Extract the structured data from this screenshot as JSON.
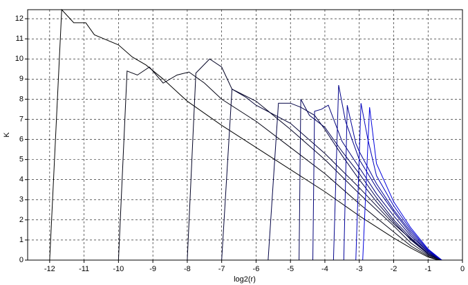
{
  "chart_data": {
    "type": "line",
    "xlabel": "log2(r)",
    "ylabel": "K",
    "xlim": [
      -12.64,
      0
    ],
    "ylim": [
      0,
      12.45
    ],
    "xticks": [
      -12,
      -11,
      -10,
      -9,
      -8,
      -7,
      -6,
      -5,
      -4,
      -3,
      -2,
      -1,
      0
    ],
    "yticks": [
      0,
      1,
      2,
      3,
      4,
      5,
      6,
      7,
      8,
      9,
      10,
      11,
      12
    ],
    "grid": true,
    "series": [
      {
        "color": "#000000",
        "x": [
          -12.0,
          -11.65,
          -11.3,
          -10.95,
          -10.7,
          -10.0,
          -9.6,
          -9.2,
          -8.7,
          -8.0,
          -7.0,
          -6.0,
          -5.0,
          -4.0,
          -3.0,
          -2.0,
          -1.5,
          -1.0,
          -0.7
        ],
        "values": [
          0,
          12.45,
          11.8,
          11.8,
          11.2,
          10.7,
          10.1,
          9.7,
          9.0,
          7.9,
          6.7,
          5.6,
          4.5,
          3.4,
          2.2,
          1.1,
          0.6,
          0.15,
          0
        ]
      },
      {
        "color": "#000010",
        "x": [
          -10.0,
          -9.75,
          -9.45,
          -9.1,
          -8.7,
          -8.3,
          -7.95,
          -7.5,
          -7.0,
          -6.0,
          -5.0,
          -4.0,
          -3.0,
          -2.0,
          -1.5,
          -1.0,
          -0.7
        ],
        "values": [
          0,
          9.4,
          9.2,
          9.6,
          8.8,
          9.2,
          9.35,
          8.8,
          8.0,
          6.9,
          5.6,
          4.3,
          2.8,
          1.4,
          0.7,
          0.2,
          0
        ]
      },
      {
        "color": "#000022",
        "x": [
          -8.0,
          -7.75,
          -7.35,
          -7.0,
          -6.7,
          -6.0,
          -5.0,
          -4.0,
          -3.0,
          -2.0,
          -1.5,
          -1.0,
          -0.65
        ],
        "values": [
          0,
          9.3,
          10.0,
          9.6,
          8.5,
          7.9,
          6.5,
          5.0,
          3.3,
          1.7,
          0.85,
          0.25,
          0
        ]
      },
      {
        "color": "#000033",
        "x": [
          -7.0,
          -6.7,
          -6.3,
          -6.0,
          -5.0,
          -4.0,
          -3.0,
          -2.0,
          -1.0,
          -0.65
        ],
        "values": [
          0,
          8.5,
          8.1,
          7.7,
          6.8,
          5.3,
          3.6,
          1.8,
          0.3,
          0
        ]
      },
      {
        "color": "#000044",
        "x": [
          -5.65,
          -5.35,
          -5.0,
          -4.7,
          -4.3,
          -4.0,
          -3.5,
          -3.0,
          -2.5,
          -2.0,
          -1.5,
          -1.0,
          -0.6
        ],
        "values": [
          0,
          7.8,
          7.8,
          7.6,
          7.2,
          6.5,
          5.2,
          4.0,
          2.9,
          1.9,
          1.0,
          0.3,
          0
        ]
      },
      {
        "color": "#000055",
        "x": [
          -4.75,
          -4.7,
          -4.45,
          -4.0,
          -3.5,
          -3.0,
          -2.5,
          -2.0,
          -1.5,
          -1.0,
          -0.6
        ],
        "values": [
          0,
          8.0,
          7.2,
          6.6,
          5.4,
          4.3,
          3.1,
          2.0,
          1.1,
          0.35,
          0
        ]
      },
      {
        "color": "#000077",
        "x": [
          -4.35,
          -4.3,
          -4.1,
          -3.9,
          -3.5,
          -3.0,
          -2.5,
          -2.0,
          -1.5,
          -1.0,
          -0.6
        ],
        "values": [
          0,
          7.4,
          7.5,
          7.7,
          5.9,
          4.6,
          3.3,
          2.2,
          1.2,
          0.4,
          0
        ]
      },
      {
        "color": "#000088",
        "x": [
          -3.75,
          -3.6,
          -3.4,
          -3.0,
          -2.5,
          -2.0,
          -1.5,
          -1.0,
          -0.6
        ],
        "values": [
          0,
          8.7,
          6.9,
          5.0,
          3.6,
          2.4,
          1.3,
          0.4,
          0
        ]
      },
      {
        "color": "#000099",
        "x": [
          -3.45,
          -3.35,
          -3.1,
          -3.0,
          -2.5,
          -2.0,
          -1.5,
          -1.0,
          -0.6
        ],
        "values": [
          0,
          7.7,
          5.8,
          5.4,
          3.8,
          2.5,
          1.4,
          0.45,
          0
        ]
      },
      {
        "color": "#0000bb",
        "x": [
          -3.1,
          -2.95,
          -2.75,
          -2.5,
          -2.0,
          -1.5,
          -1.0,
          -0.6
        ],
        "values": [
          0,
          7.8,
          6.0,
          4.2,
          2.7,
          1.5,
          0.5,
          0
        ]
      },
      {
        "color": "#0000dd",
        "x": [
          -2.9,
          -2.7,
          -2.5,
          -2.0,
          -1.5,
          -1.0,
          -0.6
        ],
        "values": [
          0,
          7.6,
          4.8,
          2.9,
          1.6,
          0.55,
          0
        ]
      }
    ]
  }
}
